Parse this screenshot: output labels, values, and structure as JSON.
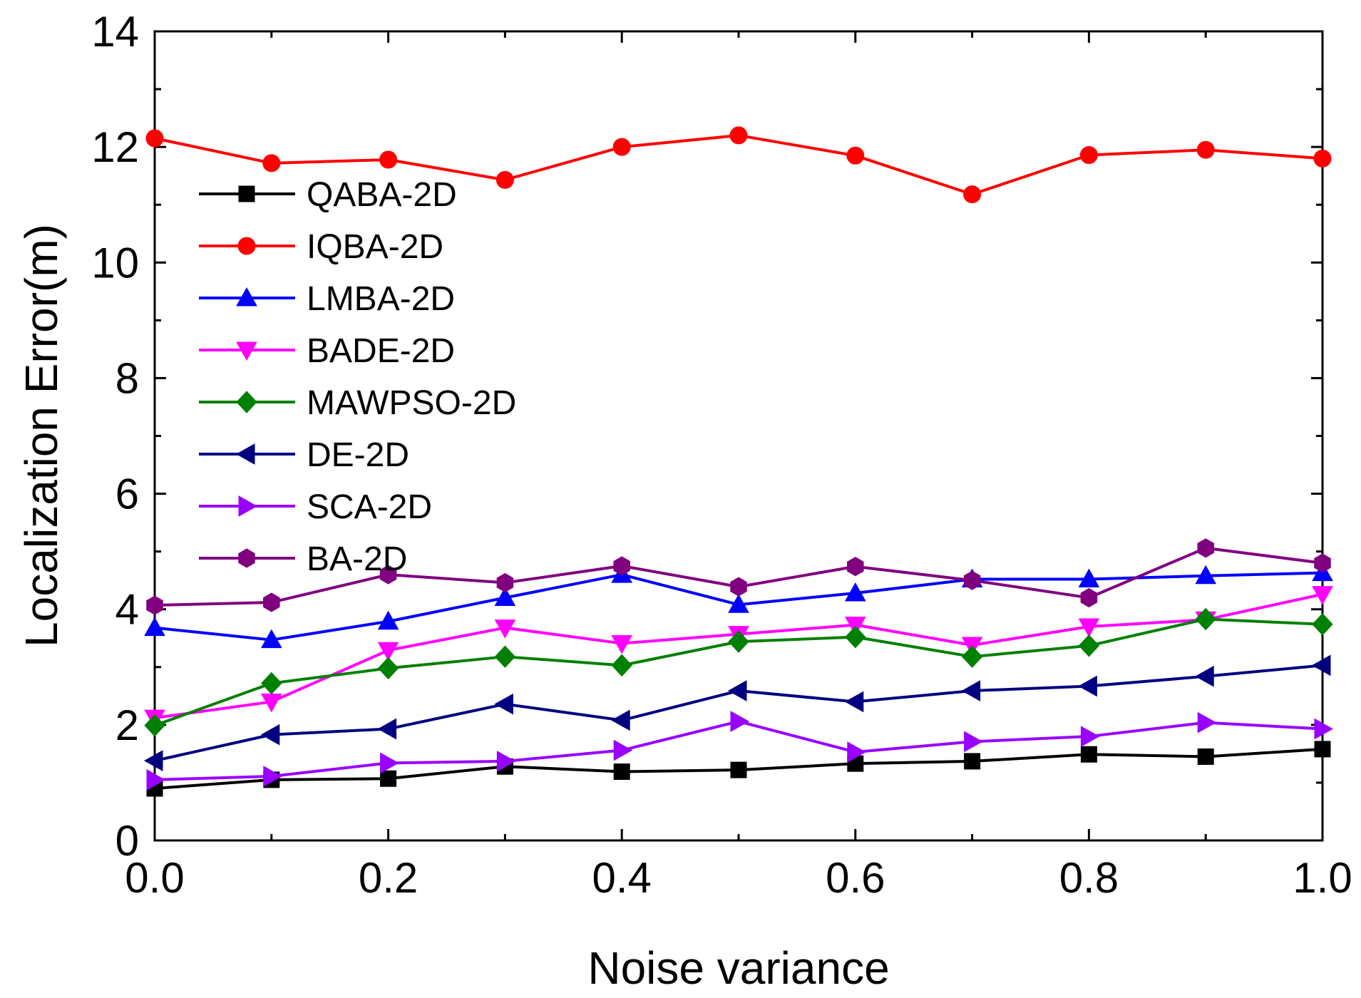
{
  "chart_data": {
    "type": "line",
    "title": "",
    "xlabel": "Noise variance",
    "ylabel": "Localization Error(m)",
    "xlim": [
      0.0,
      1.0
    ],
    "ylim": [
      0,
      14
    ],
    "xticks": [
      "0.0",
      "0.2",
      "0.4",
      "0.6",
      "0.8",
      "1.0"
    ],
    "yticks": [
      "0",
      "2",
      "4",
      "6",
      "8",
      "10",
      "12",
      "14"
    ],
    "legend_position": "upper-left",
    "grid": false,
    "x": [
      0.0,
      0.1,
      0.2,
      0.3,
      0.4,
      0.5,
      0.6,
      0.7,
      0.8,
      0.9,
      1.0
    ],
    "series": [
      {
        "name": "QABA-2D",
        "color": "#000000",
        "marker": "square",
        "values": [
          0.9,
          1.05,
          1.07,
          1.28,
          1.19,
          1.22,
          1.33,
          1.37,
          1.49,
          1.45,
          1.58
        ]
      },
      {
        "name": "IQBA-2D",
        "color": "#ff0000",
        "marker": "circle",
        "values": [
          12.15,
          11.72,
          11.78,
          11.43,
          12.0,
          12.2,
          11.85,
          11.18,
          11.86,
          11.95,
          11.8
        ]
      },
      {
        "name": "LMBA-2D",
        "color": "#0000ff",
        "marker": "triangle-up",
        "values": [
          3.68,
          3.47,
          3.79,
          4.2,
          4.6,
          4.08,
          4.28,
          4.52,
          4.52,
          4.58,
          4.63
        ]
      },
      {
        "name": "BADE-2D",
        "color": "#ff00ff",
        "marker": "triangle-down",
        "values": [
          2.12,
          2.4,
          3.29,
          3.68,
          3.41,
          3.57,
          3.73,
          3.38,
          3.7,
          3.82,
          4.26
        ]
      },
      {
        "name": "MAWPSO-2D",
        "color": "#008000",
        "marker": "diamond",
        "values": [
          1.99,
          2.72,
          2.98,
          3.18,
          3.03,
          3.44,
          3.52,
          3.18,
          3.37,
          3.83,
          3.74
        ]
      },
      {
        "name": "DE-2D",
        "color": "#000080",
        "marker": "triangle-left",
        "values": [
          1.38,
          1.83,
          1.93,
          2.36,
          2.08,
          2.59,
          2.4,
          2.59,
          2.67,
          2.84,
          3.03
        ]
      },
      {
        "name": "SCA-2D",
        "color": "#9900ff",
        "marker": "triangle-right",
        "values": [
          1.05,
          1.11,
          1.34,
          1.37,
          1.56,
          2.06,
          1.53,
          1.71,
          1.8,
          2.04,
          1.93
        ]
      },
      {
        "name": "BA-2D",
        "color": "#800080",
        "marker": "hexagon",
        "values": [
          4.07,
          4.12,
          4.6,
          4.46,
          4.75,
          4.39,
          4.74,
          4.5,
          4.2,
          5.06,
          4.8
        ]
      }
    ]
  }
}
